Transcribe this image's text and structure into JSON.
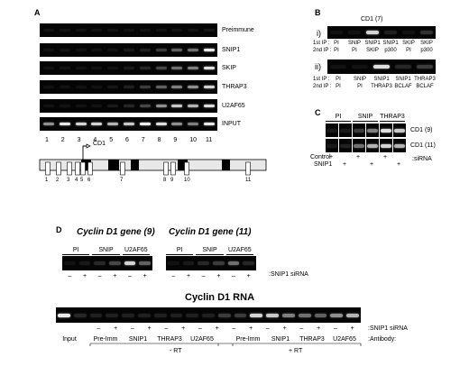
{
  "panels": {
    "a": "A",
    "b": "B",
    "c": "C",
    "d": "D"
  },
  "panelA": {
    "gels": [
      {
        "label": "Preimmune",
        "lanes": [
          0.05,
          0.05,
          0.05,
          0.05,
          0.05,
          0.05,
          0.05,
          0.05,
          0.05,
          0.05,
          0.08
        ]
      },
      {
        "label": "SNIP1",
        "lanes": [
          0.05,
          0.05,
          0.05,
          0.05,
          0.05,
          0.1,
          0.15,
          0.3,
          0.45,
          0.5,
          0.9
        ]
      },
      {
        "label": "SKIP",
        "lanes": [
          0.05,
          0.05,
          0.05,
          0.05,
          0.05,
          0.1,
          0.2,
          0.35,
          0.5,
          0.55,
          0.85
        ]
      },
      {
        "label": "THRAP3",
        "lanes": [
          0.05,
          0.05,
          0.05,
          0.05,
          0.08,
          0.15,
          0.3,
          0.45,
          0.55,
          0.6,
          0.8
        ]
      },
      {
        "label": "U2AF65",
        "lanes": [
          0.05,
          0.05,
          0.05,
          0.05,
          0.1,
          0.2,
          0.35,
          0.6,
          0.75,
          0.7,
          0.85
        ]
      },
      {
        "label": "INPUT",
        "lanes": [
          0.6,
          0.9,
          0.8,
          0.8,
          0.7,
          0.75,
          0.95,
          0.85,
          0.6,
          0.55,
          0.9
        ]
      }
    ],
    "lane_numbers": [
      "1",
      "2",
      "3",
      "4",
      "5",
      "6",
      "7",
      "8",
      "9",
      "10",
      "11"
    ],
    "gene_label": "CD1",
    "exon_numbers": [
      "1",
      "2",
      "3",
      "4",
      "5",
      "6",
      "7",
      "8",
      "9",
      "10",
      "11"
    ]
  },
  "panelB": {
    "title": "CD1 (7)",
    "row_i": {
      "tag": "i)",
      "first_ip_label": "1st IP :",
      "second_ip_label": "2nd IP :",
      "first_ip": [
        "PI",
        "SNIP",
        "SNIP1",
        "SNIP1",
        "SKIP",
        "SKIP"
      ],
      "second_ip": [
        "PI",
        "PI",
        "SKIP",
        "p300",
        "PI",
        "p300"
      ],
      "lanes": [
        0.05,
        0.05,
        0.8,
        0.15,
        0.05,
        0.25
      ]
    },
    "row_ii": {
      "tag": "ii)",
      "first_ip_label": "1st IP :",
      "second_ip_label": "2nd IP :",
      "first_ip": [
        "PI",
        "SNIP",
        "SNIP1",
        "SNIP1",
        "THRAP3"
      ],
      "second_ip": [
        "PI",
        "PI",
        "THRAP3",
        "BCLAF",
        "BCLAF"
      ],
      "lanes": [
        0.05,
        0.05,
        0.85,
        0.2,
        0.3
      ]
    }
  },
  "panelC": {
    "groups": [
      "PI",
      "SNIP",
      "THRAP3"
    ],
    "rows": [
      {
        "label": "CD1 (9)",
        "lanes": [
          0.1,
          0.1,
          0.3,
          0.55,
          0.85,
          0.75
        ]
      },
      {
        "label": "CD1 (11)",
        "lanes": [
          0.1,
          0.15,
          0.5,
          0.7,
          0.8,
          0.7
        ]
      }
    ],
    "control_label": "Control",
    "snip1_label": "SNIP1",
    "sirna_label": ":siRNA",
    "control_marks": [
      "+",
      "",
      "+",
      "",
      "+",
      ""
    ],
    "snip1_marks": [
      "",
      "+",
      "",
      "+",
      "",
      "+"
    ]
  },
  "panelD": {
    "gene9_label": "Cyclin D1 gene (9)",
    "gene11_label": "Cyclin D1 gene (11)",
    "gene9_groups": [
      "PI",
      "SNIP",
      "U2AF65"
    ],
    "gene11_groups": [
      "PI",
      "SNIP",
      "U2AF65"
    ],
    "gene9_lanes": [
      0.05,
      0.1,
      0.2,
      0.35,
      0.8,
      0.45
    ],
    "gene11_lanes": [
      0.05,
      0.1,
      0.2,
      0.3,
      0.5,
      0.2
    ],
    "gene9_marks": [
      "–",
      "+",
      "–",
      "+",
      "–",
      "+"
    ],
    "gene11_marks": [
      "–",
      "+",
      "–",
      "+",
      "–",
      "+"
    ],
    "snip1_sirna_label": ":SNIP1 siRNA",
    "rna_title": "Cyclin D1 RNA",
    "rna_lanes": [
      0.9,
      0.2,
      0.15,
      0.15,
      0.15,
      0.15,
      0.15,
      0.15,
      0.15,
      0.15,
      0.3,
      0.3,
      0.8,
      0.75,
      0.55,
      0.5,
      0.45,
      0.6,
      0.7
    ],
    "rna_marks": [
      "–",
      "+",
      "–",
      "+",
      "–",
      "+",
      "–",
      "+",
      "–",
      "+",
      "–",
      "+",
      "–",
      "+",
      "–",
      "+"
    ],
    "rna_sirna_label": ":SNIP1 siRNA",
    "rna_antibodies": [
      "Input",
      "Pre-Imm",
      "SNIP1",
      "THRAP3",
      "U2AF65",
      "Pre-Imm",
      "SNIP1",
      "THRAP3",
      "U2AF65"
    ],
    "antibody_label": ":Antibody:",
    "minus_rt": "- RT",
    "plus_rt": "+ RT"
  }
}
